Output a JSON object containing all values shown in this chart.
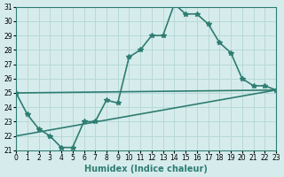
{
  "xlabel": "Humidex (Indice chaleur)",
  "ylabel": "",
  "background_color": "#d6ecec",
  "line_color": "#2e7d72",
  "grid_color": "#b8d8d8",
  "xmin": 0,
  "xmax": 23,
  "ymin": 21,
  "ymax": 31,
  "line1_x": [
    0,
    1,
    2,
    3,
    4,
    5,
    6,
    7,
    8,
    9,
    10,
    11,
    12,
    13,
    14,
    15,
    16,
    17,
    18,
    19,
    20,
    21,
    22,
    23
  ],
  "line1_y": [
    25.0,
    23.5,
    22.5,
    22.0,
    21.2,
    21.2,
    23.0,
    23.0,
    24.5,
    24.3,
    27.5,
    28.0,
    29.0,
    29.0,
    31.2,
    30.5,
    30.5,
    29.8,
    28.5,
    27.8,
    26.0,
    25.5,
    25.5,
    25.2
  ],
  "line2_x": [
    0,
    23
  ],
  "line2_y": [
    25.0,
    25.2
  ],
  "line3_x": [
    0,
    23
  ],
  "line3_y": [
    22.0,
    25.2
  ],
  "marker": "*",
  "linewidth": 1.2,
  "marker_size": 4
}
